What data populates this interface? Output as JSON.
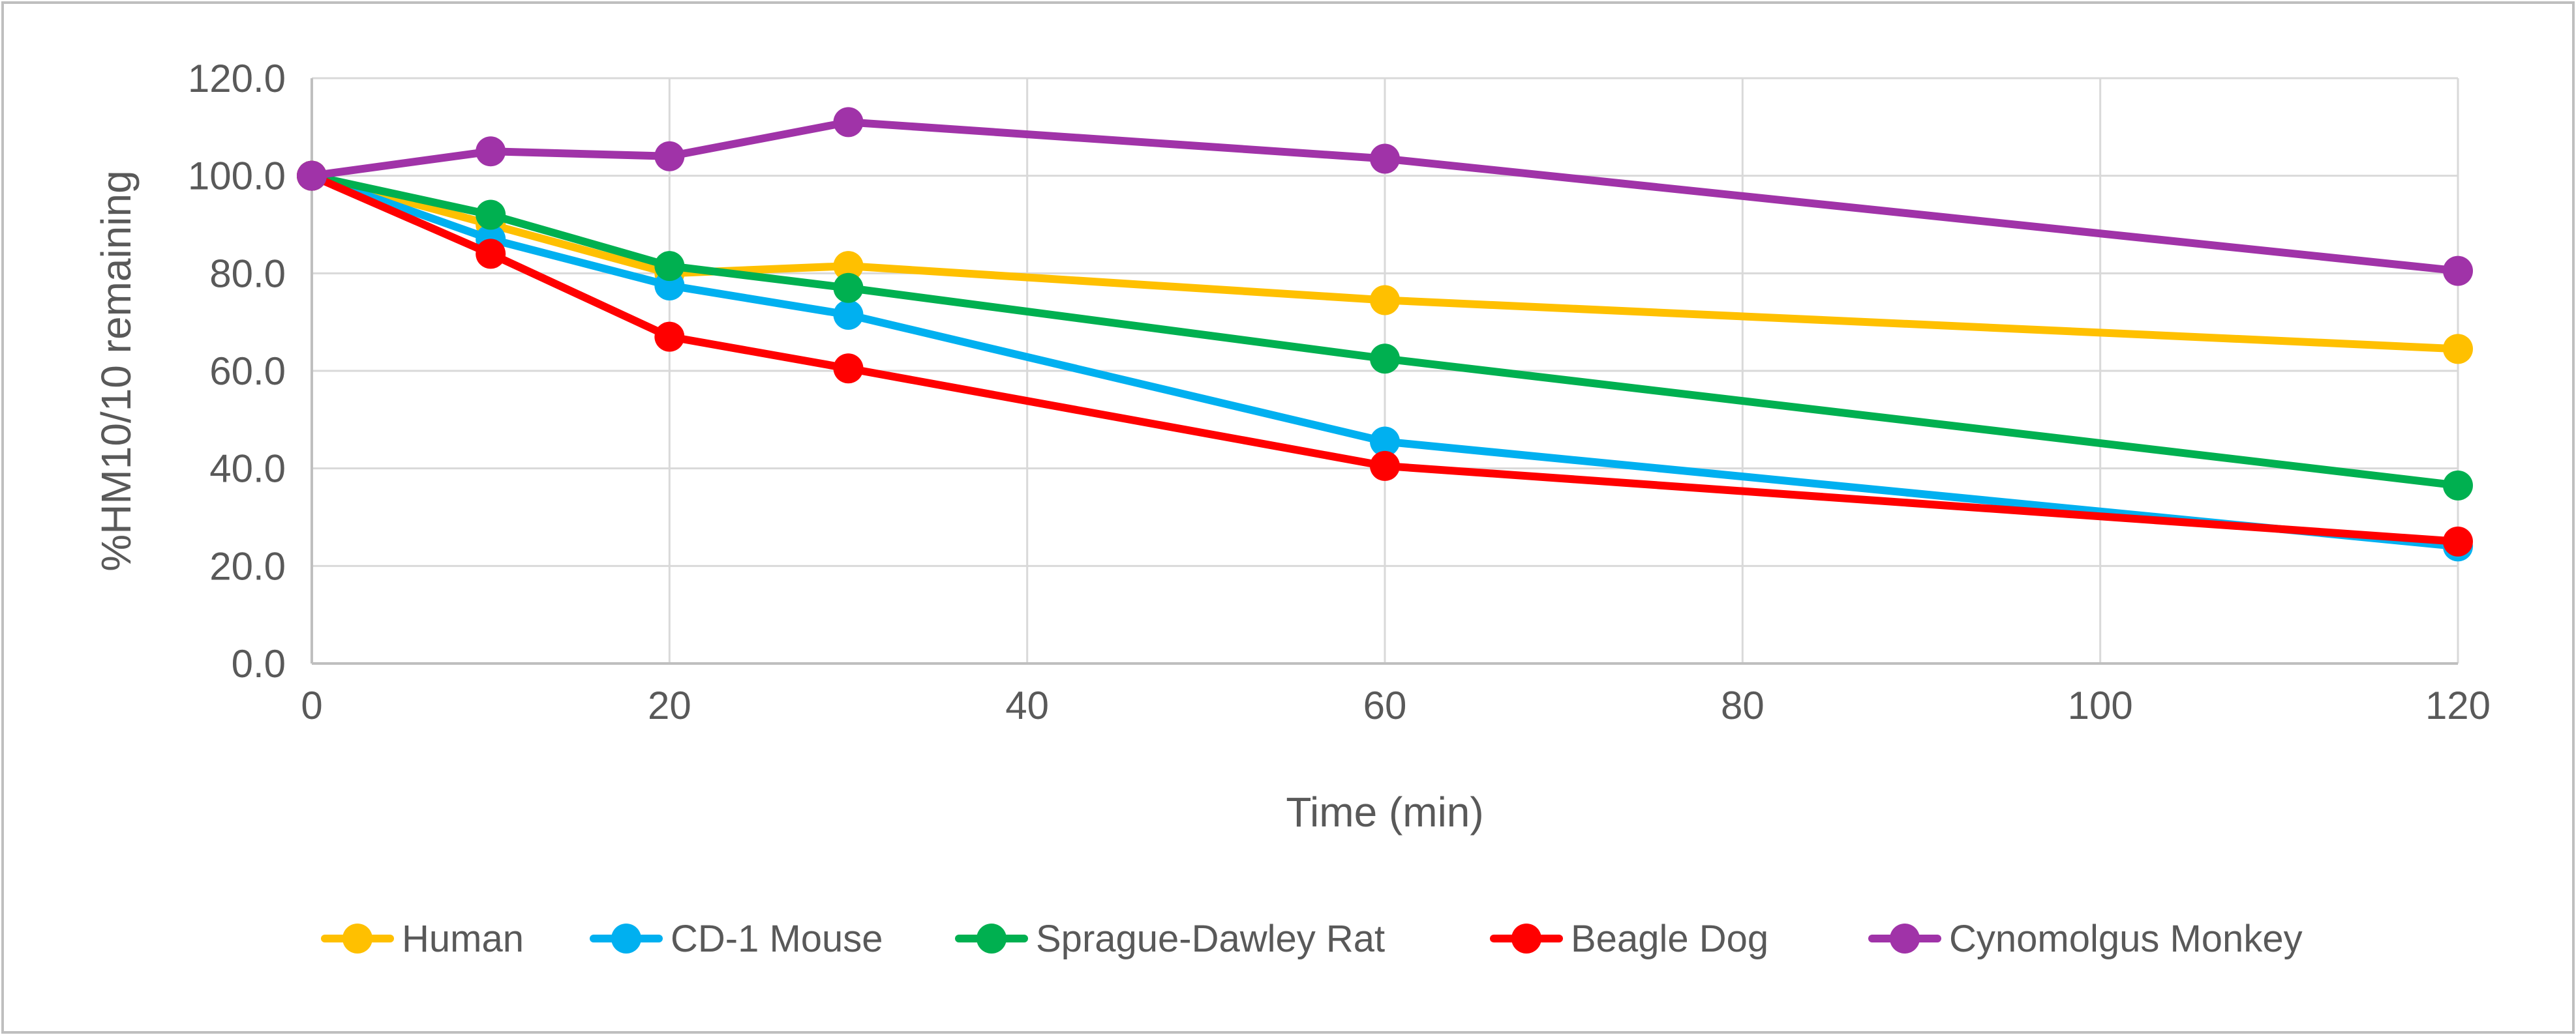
{
  "chart_data": {
    "type": "line",
    "title": "",
    "xlabel": "Time (min)",
    "ylabel": "%HM10/10 remaining",
    "xlim": [
      0,
      120
    ],
    "ylim": [
      0,
      120
    ],
    "x_ticks": [
      0,
      20,
      40,
      60,
      80,
      100,
      120
    ],
    "y_ticks": [
      0,
      20,
      40,
      60,
      80,
      100,
      120
    ],
    "x_tick_labels": [
      "0",
      "20",
      "40",
      "60",
      "80",
      "100",
      "120"
    ],
    "y_tick_labels": [
      "0.0",
      "20.0",
      "40.0",
      "60.0",
      "80.0",
      "100.0",
      "120.0"
    ],
    "grid": true,
    "legend_position": "bottom",
    "x": [
      0,
      10,
      20,
      30,
      60,
      120
    ],
    "series": [
      {
        "name": "Human",
        "color": "#FFC000",
        "values": [
          100.0,
          90.0,
          80.0,
          81.5,
          74.5,
          64.5
        ]
      },
      {
        "name": "CD-1 Mouse",
        "color": "#00B0F0",
        "values": [
          100.0,
          87.0,
          77.5,
          71.5,
          45.5,
          24.0
        ]
      },
      {
        "name": "Sprague-Dawley Rat",
        "color": "#00B050",
        "values": [
          100.0,
          92.0,
          81.5,
          77.0,
          62.5,
          36.5
        ]
      },
      {
        "name": "Beagle Dog",
        "color": "#FF0000",
        "values": [
          100.0,
          84.0,
          67.0,
          60.5,
          40.5,
          25.0
        ]
      },
      {
        "name": "Cynomolgus Monkey",
        "color": "#A033A8",
        "values": [
          100.0,
          105.0,
          104.0,
          111.0,
          103.5,
          80.5
        ]
      }
    ]
  }
}
